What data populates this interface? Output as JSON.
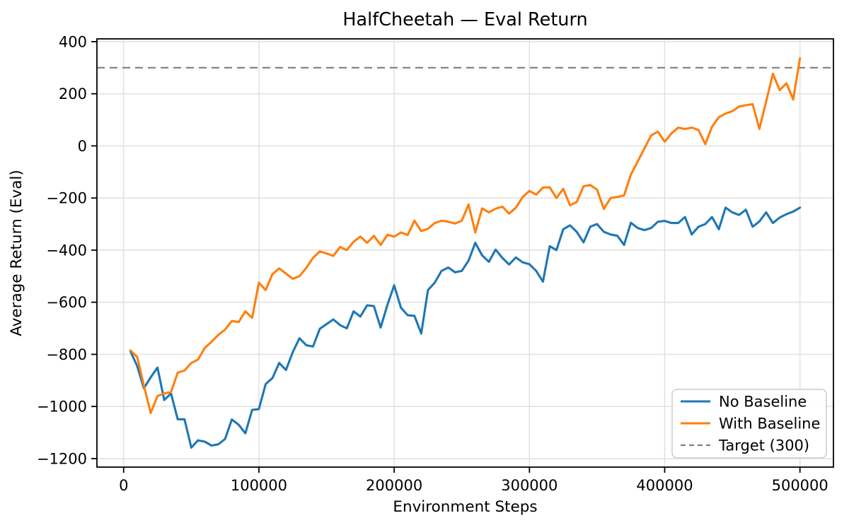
{
  "chart_data": {
    "type": "line",
    "title": "HalfCheetah — Eval Return",
    "xlabel": "Environment Steps",
    "ylabel": "Average Return (Eval)",
    "grid": true,
    "legend_position": "lower right",
    "xlim": [
      -19750,
      524750
    ],
    "ylim": [
      -1232.7,
      410.7
    ],
    "x_ticks": [
      0,
      100000,
      200000,
      300000,
      400000,
      500000
    ],
    "y_ticks": [
      400,
      200,
      0,
      -200,
      -400,
      -600,
      -800,
      -1000,
      -1200
    ],
    "x": [
      5000,
      10000,
      15000,
      20000,
      25000,
      30000,
      35000,
      40000,
      45000,
      50000,
      55000,
      60000,
      65000,
      70000,
      75000,
      80000,
      85000,
      90000,
      95000,
      100000,
      105000,
      110000,
      115000,
      120000,
      125000,
      130000,
      135000,
      140000,
      145000,
      150000,
      155000,
      160000,
      165000,
      170000,
      175000,
      180000,
      185000,
      190000,
      195000,
      200000,
      205000,
      210000,
      215000,
      220000,
      225000,
      230000,
      235000,
      240000,
      245000,
      250000,
      255000,
      260000,
      265000,
      270000,
      275000,
      280000,
      285000,
      290000,
      295000,
      300000,
      305000,
      310000,
      315000,
      320000,
      325000,
      330000,
      335000,
      340000,
      345000,
      350000,
      355000,
      360000,
      365000,
      370000,
      375000,
      380000,
      385000,
      390000,
      395000,
      400000,
      405000,
      410000,
      415000,
      420000,
      425000,
      430000,
      435000,
      440000,
      445000,
      450000,
      455000,
      460000,
      465000,
      470000,
      475000,
      480000,
      485000,
      490000,
      495000,
      500000
    ],
    "series": [
      {
        "name": "No Baseline",
        "color": "#1f77b4",
        "style": "solid",
        "values": [
          -788,
          -845,
          -930,
          -888,
          -851,
          -975,
          -950,
          -1049,
          -1049,
          -1158,
          -1130,
          -1135,
          -1150,
          -1145,
          -1125,
          -1050,
          -1070,
          -1103,
          -1013,
          -1010,
          -914,
          -891,
          -833,
          -860,
          -792,
          -738,
          -765,
          -770,
          -702,
          -684,
          -666,
          -688,
          -700,
          -635,
          -655,
          -612,
          -615,
          -697,
          -610,
          -535,
          -621,
          -650,
          -652,
          -720,
          -553,
          -525,
          -480,
          -467,
          -485,
          -480,
          -440,
          -372,
          -420,
          -445,
          -398,
          -430,
          -455,
          -428,
          -447,
          -454,
          -480,
          -521,
          -385,
          -400,
          -320,
          -305,
          -330,
          -370,
          -310,
          -300,
          -330,
          -340,
          -345,
          -380,
          -295,
          -315,
          -323,
          -315,
          -291,
          -288,
          -296,
          -296,
          -273,
          -340,
          -310,
          -300,
          -273,
          -320,
          -237,
          -255,
          -265,
          -245,
          -310,
          -290,
          -255,
          -296,
          -275,
          -262,
          -252,
          -237
        ]
      },
      {
        "name": "With Baseline",
        "color": "#ff7f0e",
        "style": "solid",
        "values": [
          -785,
          -810,
          -920,
          -1025,
          -960,
          -950,
          -945,
          -870,
          -862,
          -833,
          -820,
          -775,
          -752,
          -725,
          -705,
          -672,
          -676,
          -635,
          -660,
          -525,
          -553,
          -492,
          -470,
          -490,
          -510,
          -500,
          -468,
          -430,
          -405,
          -413,
          -422,
          -388,
          -400,
          -368,
          -348,
          -372,
          -345,
          -380,
          -341,
          -348,
          -332,
          -342,
          -287,
          -327,
          -318,
          -296,
          -287,
          -291,
          -298,
          -287,
          -225,
          -332,
          -240,
          -255,
          -241,
          -233,
          -260,
          -237,
          -196,
          -173,
          -187,
          -160,
          -159,
          -200,
          -165,
          -228,
          -215,
          -155,
          -150,
          -168,
          -242,
          -200,
          -196,
          -190,
          -110,
          -60,
          -10,
          40,
          55,
          16,
          48,
          70,
          65,
          70,
          61,
          7,
          74,
          110,
          124,
          133,
          151,
          156,
          160,
          65,
          170,
          277,
          214,
          240,
          178,
          336
        ]
      }
    ],
    "target": {
      "label": "Target (300)",
      "value": 300,
      "color": "#7f7f7f",
      "style": "dashed"
    }
  }
}
